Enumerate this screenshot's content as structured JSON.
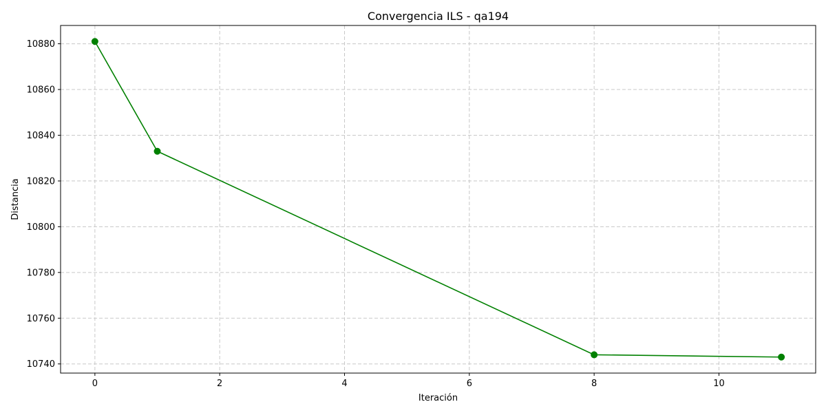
{
  "chart_data": {
    "type": "line",
    "title": "Convergencia ILS - qa194",
    "xlabel": "Iteración",
    "ylabel": "Distancia",
    "xlim": [
      -0.55,
      11.55
    ],
    "ylim": [
      10736,
      10888
    ],
    "xticks": [
      0,
      2,
      4,
      6,
      8,
      10
    ],
    "yticks": [
      10740,
      10760,
      10780,
      10800,
      10820,
      10840,
      10860,
      10880
    ],
    "grid": true,
    "series": [
      {
        "color": "#008000",
        "marker": "circle",
        "x": [
          0,
          1,
          8,
          11
        ],
        "y": [
          10881,
          10833,
          10744,
          10743
        ]
      }
    ]
  }
}
